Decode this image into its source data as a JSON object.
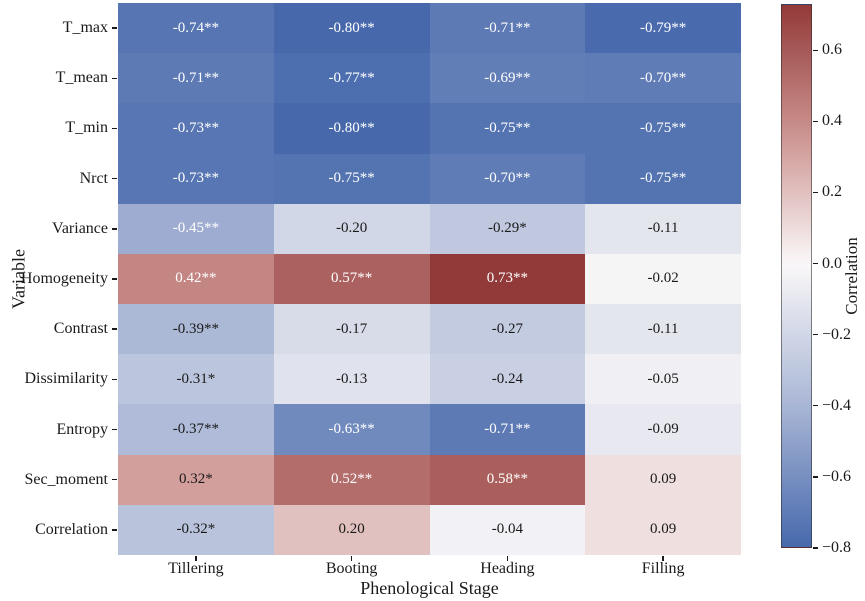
{
  "chart_data": {
    "type": "heatmap",
    "title": "",
    "xlabel": "Phenological Stage",
    "ylabel": "Variable",
    "rows": [
      "T_max",
      "T_mean",
      "T_min",
      "Nrct",
      "Variance",
      "Homogeneity",
      "Contrast",
      "Dissimilarity",
      "Entropy",
      "Sec_moment",
      "Correlation"
    ],
    "columns": [
      "Tillering",
      "Booting",
      "Heading",
      "Filling"
    ],
    "values": [
      [
        -0.74,
        -0.8,
        -0.71,
        -0.79
      ],
      [
        -0.71,
        -0.77,
        -0.69,
        -0.7
      ],
      [
        -0.73,
        -0.8,
        -0.75,
        -0.75
      ],
      [
        -0.73,
        -0.75,
        -0.7,
        -0.75
      ],
      [
        -0.45,
        -0.2,
        -0.29,
        -0.11
      ],
      [
        0.42,
        0.57,
        0.73,
        -0.02
      ],
      [
        -0.39,
        -0.17,
        -0.27,
        -0.11
      ],
      [
        -0.31,
        -0.13,
        -0.24,
        -0.05
      ],
      [
        -0.37,
        -0.63,
        -0.71,
        -0.09
      ],
      [
        0.32,
        0.52,
        0.58,
        0.09
      ],
      [
        -0.32,
        0.2,
        -0.04,
        0.09
      ]
    ],
    "annotations": [
      [
        "-0.74**",
        "-0.80**",
        "-0.71**",
        "-0.79**"
      ],
      [
        "-0.71**",
        "-0.77**",
        "-0.69**",
        "-0.70**"
      ],
      [
        "-0.73**",
        "-0.80**",
        "-0.75**",
        "-0.75**"
      ],
      [
        "-0.73**",
        "-0.75**",
        "-0.70**",
        "-0.75**"
      ],
      [
        "-0.45**",
        "-0.20",
        "-0.29*",
        "-0.11"
      ],
      [
        "0.42**",
        "0.57**",
        "0.73**",
        "-0.02"
      ],
      [
        "-0.39**",
        "-0.17",
        "-0.27",
        "-0.11"
      ],
      [
        "-0.31*",
        "-0.13",
        "-0.24",
        "-0.05"
      ],
      [
        "-0.37**",
        "-0.63**",
        "-0.71**",
        "-0.09"
      ],
      [
        "0.32*",
        "0.52**",
        "0.58**",
        "0.09"
      ],
      [
        "-0.32*",
        "0.20",
        "-0.04",
        "0.09"
      ]
    ],
    "colorbar": {
      "label": "Correlation",
      "ticks": [
        0.6,
        0.4,
        0.2,
        0.0,
        -0.2,
        -0.4,
        -0.6,
        -0.8
      ],
      "tick_labels": [
        "0.6",
        "0.4",
        "0.2",
        "0.0",
        "−0.2",
        "−0.4",
        "−0.6",
        "−0.8"
      ],
      "vmin": -0.8,
      "vmax": 0.73
    },
    "colors": {
      "positive_max": "#923a39",
      "positive_mid": "#cc9390",
      "center": "#faf8f8",
      "negative_mid": "#a9b6d5",
      "negative_max": "#4769ac",
      "annotation_light": "#ffffff",
      "annotation_dark": "#1a1a1a"
    },
    "legend_position": "right-colorbar",
    "grid": false
  }
}
